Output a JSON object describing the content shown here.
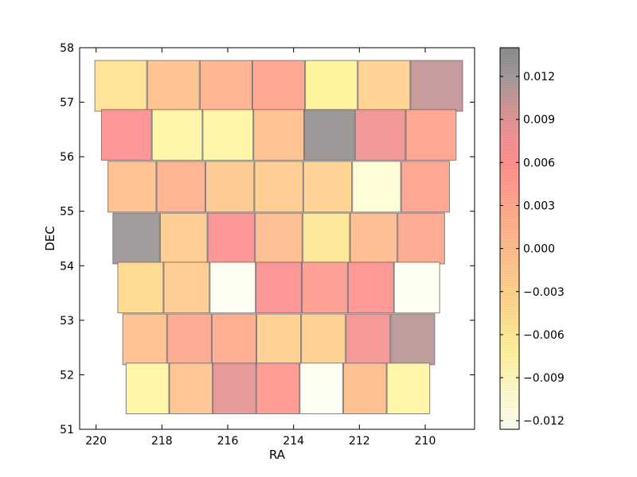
{
  "chart_data": {
    "type": "heatmap",
    "xlabel": "RA",
    "ylabel": "DEC",
    "xlim": [
      220.5,
      208.5
    ],
    "ylim": [
      51,
      58
    ],
    "x_ticks": [
      {
        "value": 220,
        "label": "220"
      },
      {
        "value": 218,
        "label": "218"
      },
      {
        "value": 216,
        "label": "216"
      },
      {
        "value": 214,
        "label": "214"
      },
      {
        "value": 212,
        "label": "212"
      },
      {
        "value": 210,
        "label": "210"
      }
    ],
    "y_ticks": [
      {
        "value": 51,
        "label": "51"
      },
      {
        "value": 52,
        "label": "52"
      },
      {
        "value": 53,
        "label": "53"
      },
      {
        "value": 54,
        "label": "54"
      },
      {
        "value": 55,
        "label": "55"
      },
      {
        "value": 56,
        "label": "56"
      },
      {
        "value": 57,
        "label": "57"
      },
      {
        "value": 58,
        "label": "58"
      }
    ],
    "colorbar": {
      "min": -0.0126,
      "max": 0.014,
      "ticks": [
        {
          "value": 0.012,
          "label": "0.012"
        },
        {
          "value": 0.009,
          "label": "0.009"
        },
        {
          "value": 0.006,
          "label": "0.006"
        },
        {
          "value": 0.003,
          "label": "0.003"
        },
        {
          "value": 0.0,
          "label": "0.000"
        },
        {
          "value": -0.003,
          "label": "−0.003"
        },
        {
          "value": -0.006,
          "label": "−0.006"
        },
        {
          "value": -0.009,
          "label": "−0.009"
        },
        {
          "value": -0.012,
          "label": "−0.012"
        }
      ],
      "colors": [
        {
          "v": -0.0126,
          "color": "#fffff0"
        },
        {
          "v": -0.01,
          "color": "#fffbd0"
        },
        {
          "v": -0.007,
          "color": "#fff29a"
        },
        {
          "v": -0.004,
          "color": "#ffd98e"
        },
        {
          "v": -0.001,
          "color": "#ffc48e"
        },
        {
          "v": 0.002,
          "color": "#ffb08e"
        },
        {
          "v": 0.004,
          "color": "#ffa08e"
        },
        {
          "v": 0.006,
          "color": "#ff9090"
        },
        {
          "v": 0.008,
          "color": "#f09494"
        },
        {
          "v": 0.01,
          "color": "#d09696"
        },
        {
          "v": 0.012,
          "color": "#a49a9a"
        },
        {
          "v": 0.014,
          "color": "#8c8c8c"
        }
      ]
    },
    "tile_dec_height": 0.93,
    "rows": [
      {
        "dec_center": 57.3,
        "ra_left": 220.05,
        "ra_right": 208.85,
        "values": [
          -0.005,
          -0.0005,
          0.002,
          0.0035,
          -0.007,
          -0.003,
          0.0105
        ]
      },
      {
        "dec_center": 56.4,
        "ra_left": 219.85,
        "ra_right": 209.05,
        "values": [
          0.0065,
          -0.0075,
          -0.0075,
          -0.0005,
          0.013,
          0.008,
          0.0035
        ]
      },
      {
        "dec_center": 55.45,
        "ra_left": 219.65,
        "ra_right": 209.25,
        "values": [
          -0.0005,
          0.002,
          -0.0015,
          -0.002,
          -0.003,
          -0.0105,
          0.0035
        ]
      },
      {
        "dec_center": 54.5,
        "ra_left": 219.5,
        "ra_right": 209.4,
        "values": [
          0.0125,
          -0.002,
          0.0065,
          0.0002,
          -0.0055,
          0.0005,
          0.003
        ]
      },
      {
        "dec_center": 53.6,
        "ra_left": 219.35,
        "ra_right": 209.55,
        "values": [
          -0.004,
          -0.002,
          -0.015,
          0.0065,
          0.0045,
          0.0055,
          -0.015
        ]
      },
      {
        "dec_center": 52.65,
        "ra_left": 219.2,
        "ra_right": 209.7,
        "values": [
          -0.0002,
          0.003,
          0.0025,
          -0.0025,
          -0.0025,
          0.0075,
          0.011
        ]
      },
      {
        "dec_center": 51.75,
        "ra_left": 219.1,
        "ra_right": 209.85,
        "values": [
          -0.0075,
          -0.001,
          0.0085,
          0.005,
          -0.013,
          0.0,
          -0.0075
        ]
      }
    ]
  }
}
